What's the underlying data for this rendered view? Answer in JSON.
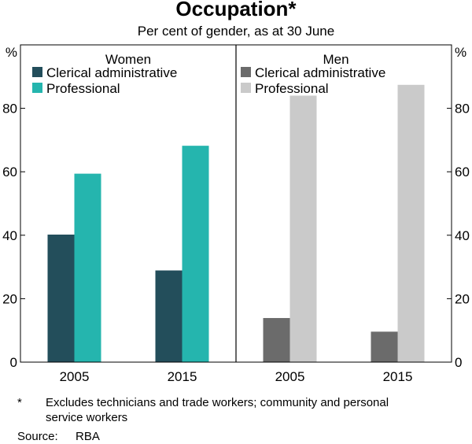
{
  "title": "Occupation*",
  "subtitle": "Per cent of gender, as at 30 June",
  "chart_data": {
    "type": "bar",
    "unit_left": "%",
    "unit_right": "%",
    "ylim": [
      0,
      100
    ],
    "yticks": [
      0,
      20,
      40,
      60,
      80
    ],
    "grid": false,
    "legend_placement": "top-left of each panel",
    "panels": [
      {
        "name": "Women",
        "categories": [
          "2005",
          "2015"
        ],
        "series": [
          {
            "name": "Clerical administrative",
            "color": "#234e5b",
            "values": [
              40.2,
              28.9
            ]
          },
          {
            "name": "Professional",
            "color": "#25b5ae",
            "values": [
              59.4,
              68.2
            ]
          }
        ]
      },
      {
        "name": "Men",
        "categories": [
          "2005",
          "2015"
        ],
        "series": [
          {
            "name": "Clerical administrative",
            "color": "#6b6b6b",
            "values": [
              13.9,
              9.6
            ]
          },
          {
            "name": "Professional",
            "color": "#cacaca",
            "values": [
              84.0,
              87.4
            ]
          }
        ]
      }
    ]
  },
  "footnotes": {
    "marker": "*",
    "line1": "Excludes technicians and trade workers; community and personal",
    "line2": "service workers",
    "source_label": "Source:",
    "source_value": "RBA"
  }
}
